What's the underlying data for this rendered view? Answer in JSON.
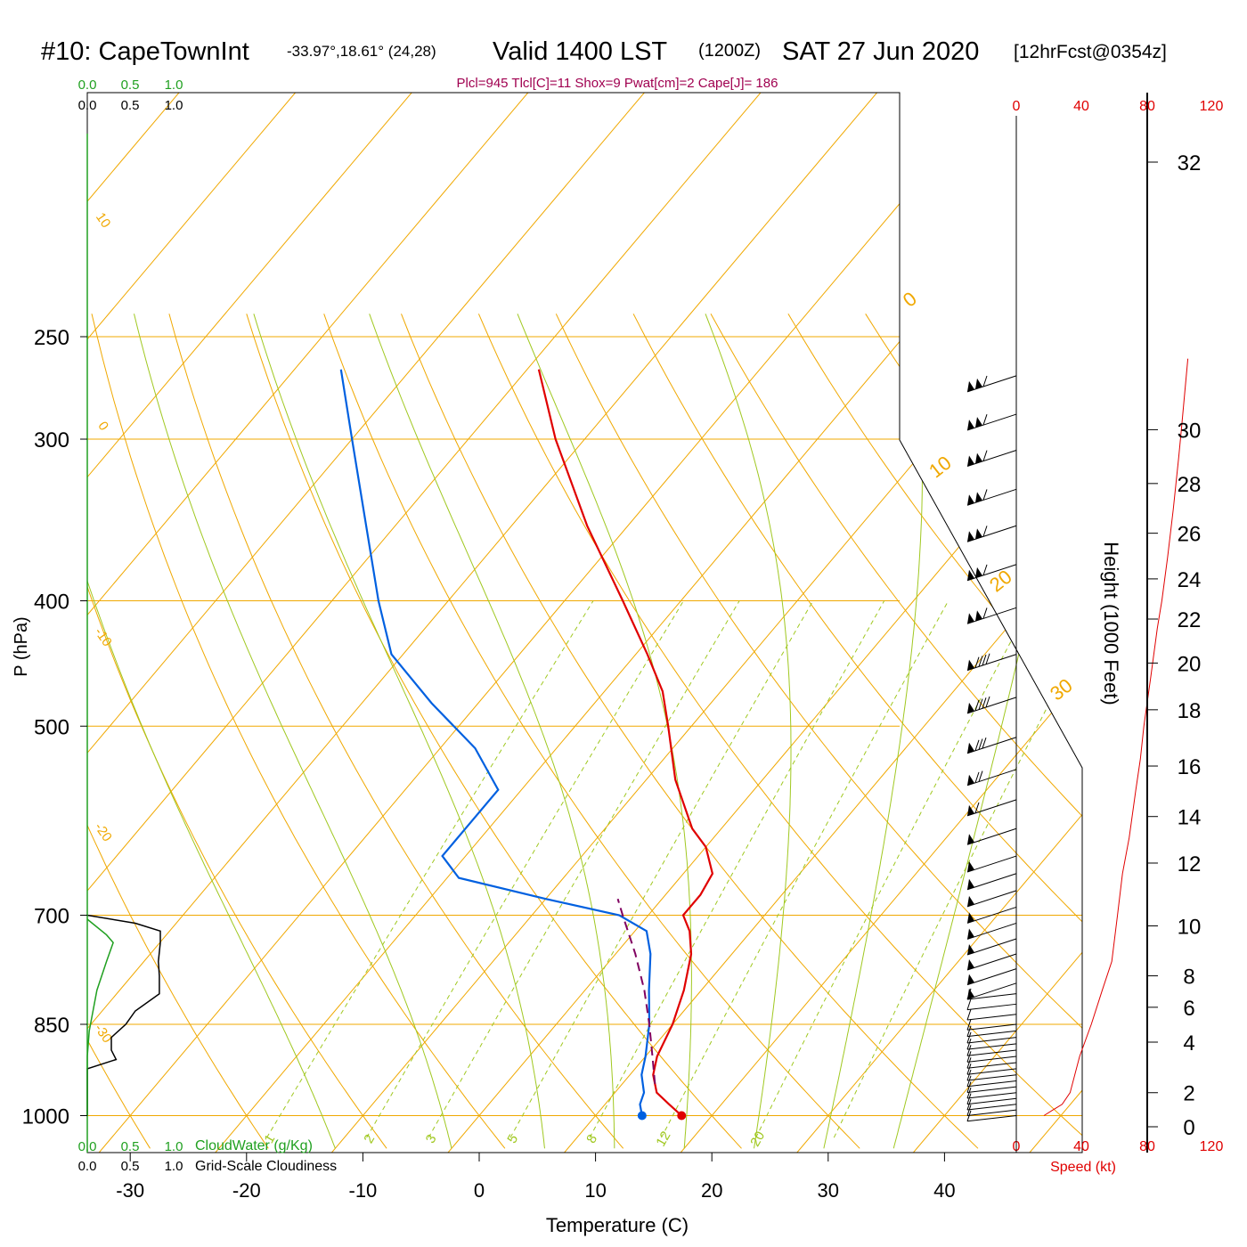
{
  "header": {
    "station": "#10: CapeTownInt",
    "coords": "-33.97°,18.61° (24,28)",
    "valid": "Valid 1400 LST",
    "zulu": "(1200Z)",
    "date": "SAT 27 Jun 2020",
    "forecast": "[12hrFcst@0354z]"
  },
  "indices": "Plcl=945 Tlcl[C]=11 Shox=9 Pwat[cm]=2 Cape[J]= 186",
  "colors": {
    "temperature": "#e00000",
    "dewpoint": "#0060e0",
    "parcel": "#800060",
    "isotherm": "#f0a800",
    "dry_adiabat": "#f0a800",
    "moist_adiabat": "#a0c820",
    "mixing_ratio": "#a0c820",
    "cloud_water": "#20a020",
    "cloudiness": "#000000",
    "height_profile": "#e00000",
    "indices_text": "#a00050"
  },
  "chart_data": {
    "type": "skew-t",
    "xlabel": "Temperature (C)",
    "ylabel": "P (hPa)",
    "right_ylabel": "Height (1000 Feet)",
    "speed_label": "Speed (kt)",
    "temperature_ticks": [
      "-30",
      "-20",
      "-10",
      "0",
      "10",
      "20",
      "30",
      "40"
    ],
    "pressure_ticks": [
      "250",
      "300",
      "400",
      "500",
      "700",
      "850",
      "1000"
    ],
    "height_ticks": [
      "0",
      "2",
      "4",
      "6",
      "8",
      "10",
      "12",
      "14",
      "16",
      "18",
      "20",
      "22",
      "24",
      "26",
      "28",
      "30",
      "32"
    ],
    "speed_ticks": [
      "0",
      "40",
      "80",
      "120"
    ],
    "cloud_water_label": "CloudWater (g/Kg)",
    "cloudiness_label": "Grid-Scale Cloudiness",
    "cloud_scale_ticks": [
      "0.0",
      "0.5",
      "1.0"
    ],
    "isotherm_labels": [
      "10",
      "0",
      "-10",
      "-20",
      "-30",
      "0",
      "10",
      "20",
      "30"
    ],
    "mixing_ratio_labels": [
      "1",
      "2",
      "3",
      "5",
      "8",
      "12",
      "20"
    ],
    "temperature_profile": [
      {
        "p": 1000,
        "t": 17.4
      },
      {
        "p": 980,
        "t": 15.5
      },
      {
        "p": 960,
        "t": 13.6
      },
      {
        "p": 945,
        "t": 12.8
      },
      {
        "p": 930,
        "t": 12.0
      },
      {
        "p": 900,
        "t": 11.0
      },
      {
        "p": 850,
        "t": 10.0
      },
      {
        "p": 800,
        "t": 8.5
      },
      {
        "p": 750,
        "t": 6.5
      },
      {
        "p": 720,
        "t": 4.7
      },
      {
        "p": 700,
        "t": 3.0
      },
      {
        "p": 675,
        "t": 3.0
      },
      {
        "p": 650,
        "t": 2.5
      },
      {
        "p": 620,
        "t": 0.0
      },
      {
        "p": 600,
        "t": -2.5
      },
      {
        "p": 550,
        "t": -7.5
      },
      {
        "p": 500,
        "t": -12.0
      },
      {
        "p": 470,
        "t": -15.0
      },
      {
        "p": 440,
        "t": -19.0
      },
      {
        "p": 400,
        "t": -25.0
      },
      {
        "p": 350,
        "t": -33.5
      },
      {
        "p": 300,
        "t": -42.5
      },
      {
        "p": 265,
        "t": -49.0
      }
    ],
    "dewpoint_profile": [
      {
        "p": 1000,
        "t": 14.0
      },
      {
        "p": 980,
        "t": 13.0
      },
      {
        "p": 960,
        "t": 12.5
      },
      {
        "p": 930,
        "t": 11.0
      },
      {
        "p": 900,
        "t": 10.0
      },
      {
        "p": 850,
        "t": 8.0
      },
      {
        "p": 800,
        "t": 5.5
      },
      {
        "p": 750,
        "t": 3.0
      },
      {
        "p": 720,
        "t": 1.0
      },
      {
        "p": 700,
        "t": -2.5
      },
      {
        "p": 680,
        "t": -10.0
      },
      {
        "p": 655,
        "t": -19.0
      },
      {
        "p": 630,
        "t": -22.0
      },
      {
        "p": 600,
        "t": -22.0
      },
      {
        "p": 560,
        "t": -22.0
      },
      {
        "p": 520,
        "t": -27.0
      },
      {
        "p": 480,
        "t": -34.0
      },
      {
        "p": 440,
        "t": -41.0
      },
      {
        "p": 400,
        "t": -46.0
      },
      {
        "p": 350,
        "t": -52.5
      },
      {
        "p": 300,
        "t": -60.0
      },
      {
        "p": 265,
        "t": -66.0
      }
    ],
    "parcel_path": [
      {
        "p": 945,
        "t": 12.8
      },
      {
        "p": 900,
        "t": 10.6
      },
      {
        "p": 850,
        "t": 8.0
      },
      {
        "p": 800,
        "t": 5.1
      },
      {
        "p": 750,
        "t": 1.7
      },
      {
        "p": 700,
        "t": -2.2
      },
      {
        "p": 680,
        "t": -3.8
      }
    ],
    "cloud_water_profile": [
      {
        "p": 1000,
        "v": 0.0
      },
      {
        "p": 900,
        "v": 0.0
      },
      {
        "p": 860,
        "v": 0.02
      },
      {
        "p": 800,
        "v": 0.1
      },
      {
        "p": 760,
        "v": 0.2
      },
      {
        "p": 735,
        "v": 0.27
      },
      {
        "p": 725,
        "v": 0.2
      },
      {
        "p": 705,
        "v": 0.0
      }
    ],
    "cloudiness_profile": [
      {
        "p": 1000,
        "v": 0.0
      },
      {
        "p": 920,
        "v": 0.0
      },
      {
        "p": 905,
        "v": 0.3
      },
      {
        "p": 890,
        "v": 0.25
      },
      {
        "p": 870,
        "v": 0.25
      },
      {
        "p": 850,
        "v": 0.4
      },
      {
        "p": 830,
        "v": 0.5
      },
      {
        "p": 805,
        "v": 0.75
      },
      {
        "p": 780,
        "v": 0.75
      },
      {
        "p": 760,
        "v": 0.74
      },
      {
        "p": 735,
        "v": 0.76
      },
      {
        "p": 720,
        "v": 0.76
      },
      {
        "p": 710,
        "v": 0.5
      },
      {
        "p": 700,
        "v": 0.0
      }
    ],
    "wind_barbs": [
      {
        "p": 1000,
        "spd": 10
      },
      {
        "p": 990,
        "spd": 10
      },
      {
        "p": 980,
        "spd": 10
      },
      {
        "p": 970,
        "spd": 10
      },
      {
        "p": 960,
        "spd": 10
      },
      {
        "p": 950,
        "spd": 10
      },
      {
        "p": 940,
        "spd": 10
      },
      {
        "p": 930,
        "spd": 10
      },
      {
        "p": 920,
        "spd": 10
      },
      {
        "p": 910,
        "spd": 10
      },
      {
        "p": 900,
        "spd": 10
      },
      {
        "p": 890,
        "spd": 10
      },
      {
        "p": 880,
        "spd": 10
      },
      {
        "p": 870,
        "spd": 10
      },
      {
        "p": 860,
        "spd": 10
      },
      {
        "p": 850,
        "spd": 10
      },
      {
        "p": 835,
        "spd": 10
      },
      {
        "p": 820,
        "spd": 10
      },
      {
        "p": 805,
        "spd": 10
      },
      {
        "p": 790,
        "spd": 50
      },
      {
        "p": 770,
        "spd": 50
      },
      {
        "p": 750,
        "spd": 50
      },
      {
        "p": 730,
        "spd": 50
      },
      {
        "p": 710,
        "spd": 50
      },
      {
        "p": 690,
        "spd": 50
      },
      {
        "p": 670,
        "spd": 50
      },
      {
        "p": 650,
        "spd": 50
      },
      {
        "p": 630,
        "spd": 50
      },
      {
        "p": 600,
        "spd": 50
      },
      {
        "p": 570,
        "spd": 60
      },
      {
        "p": 540,
        "spd": 70
      },
      {
        "p": 510,
        "spd": 80
      },
      {
        "p": 475,
        "spd": 90
      },
      {
        "p": 440,
        "spd": 90
      },
      {
        "p": 405,
        "spd": 110
      },
      {
        "p": 375,
        "spd": 110
      },
      {
        "p": 350,
        "spd": 110
      },
      {
        "p": 328,
        "spd": 110
      },
      {
        "p": 306,
        "spd": 115
      },
      {
        "p": 287,
        "spd": 115
      },
      {
        "p": 268,
        "spd": 115
      }
    ],
    "height_profile": [
      {
        "p": 1000,
        "kft": 0.1
      },
      {
        "p": 990,
        "kft": 0.5
      },
      {
        "p": 980,
        "kft": 1.2
      },
      {
        "p": 960,
        "kft": 2.0
      },
      {
        "p": 900,
        "kft": 3.2
      },
      {
        "p": 850,
        "kft": 5.0
      },
      {
        "p": 800,
        "kft": 7.0
      },
      {
        "p": 760,
        "kft": 9.0
      },
      {
        "p": 700,
        "kft": 10.3
      },
      {
        "p": 650,
        "kft": 11.5
      },
      {
        "p": 610,
        "kft": 13.2
      },
      {
        "p": 560,
        "kft": 15.0
      },
      {
        "p": 530,
        "kft": 16.3
      },
      {
        "p": 500,
        "kft": 17.3
      },
      {
        "p": 460,
        "kft": 19.3
      },
      {
        "p": 420,
        "kft": 21.5
      },
      {
        "p": 400,
        "kft": 23.0
      },
      {
        "p": 370,
        "kft": 25.0
      },
      {
        "p": 340,
        "kft": 27.0
      },
      {
        "p": 310,
        "kft": 29.0
      },
      {
        "p": 295,
        "kft": 30.0
      },
      {
        "p": 260,
        "kft": 32.5
      }
    ]
  }
}
